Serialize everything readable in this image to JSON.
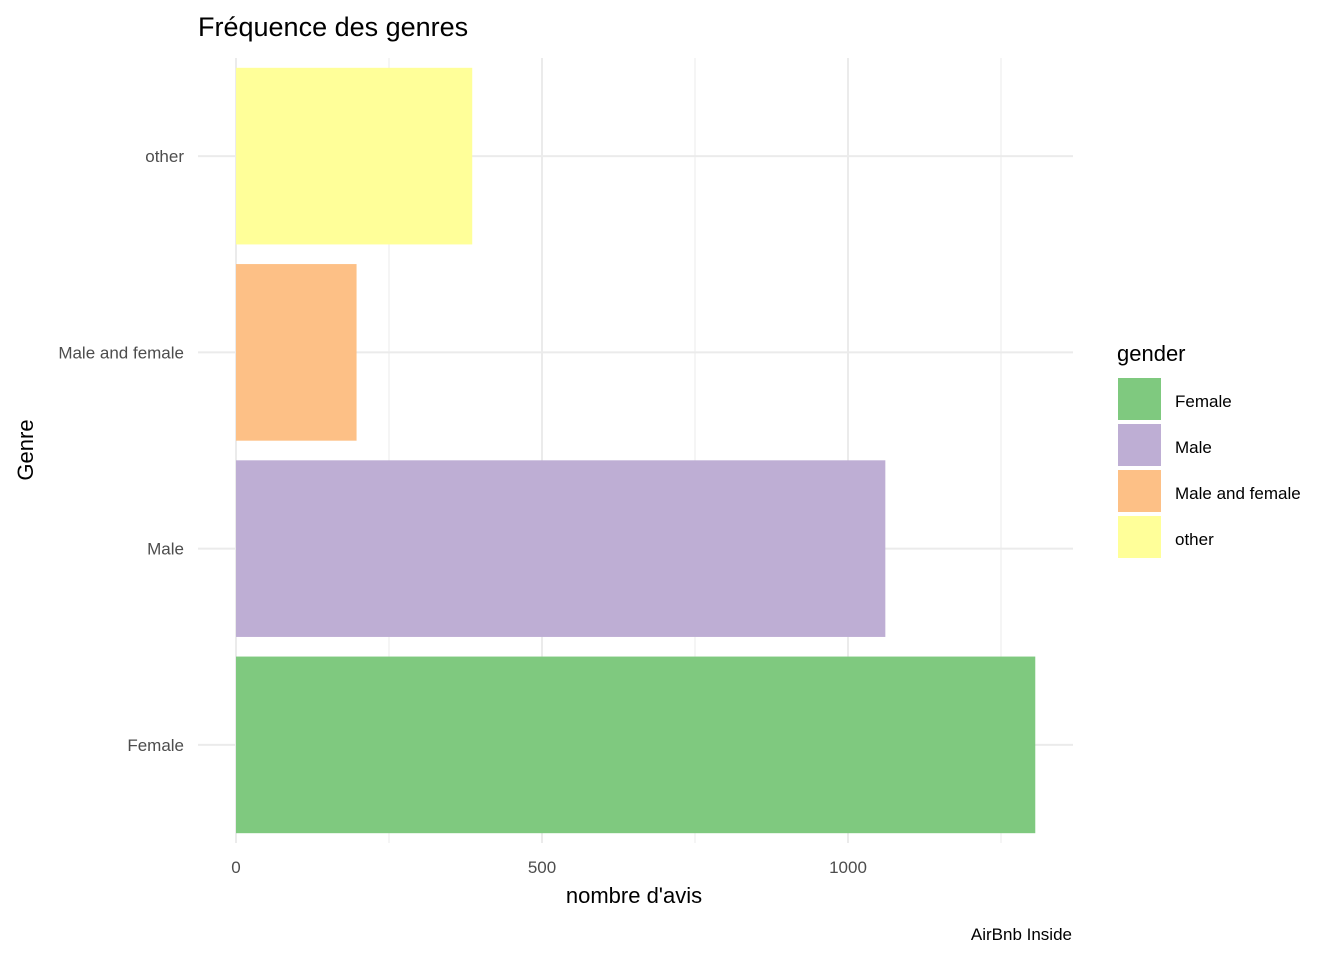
{
  "chart_data": {
    "type": "bar",
    "orientation": "horizontal",
    "title": "Fréquence des genres",
    "xlabel": "nombre d'avis",
    "ylabel": "Genre",
    "caption": "AirBnb Inside",
    "categories": [
      "Female",
      "Male",
      "Male and female",
      "other"
    ],
    "values": [
      1306,
      1061,
      197,
      386
    ],
    "colors": [
      "#7fc97f",
      "#beaed4",
      "#fdc086",
      "#ffff99"
    ],
    "xlim": [
      0,
      1370
    ],
    "x_ticks": [
      0,
      500,
      1000
    ],
    "x_minor_ticks": [
      250,
      750,
      1250
    ],
    "grid": true,
    "legend": {
      "title": "gender",
      "position": "right",
      "entries": [
        "Female",
        "Male",
        "Male and female",
        "other"
      ]
    }
  }
}
